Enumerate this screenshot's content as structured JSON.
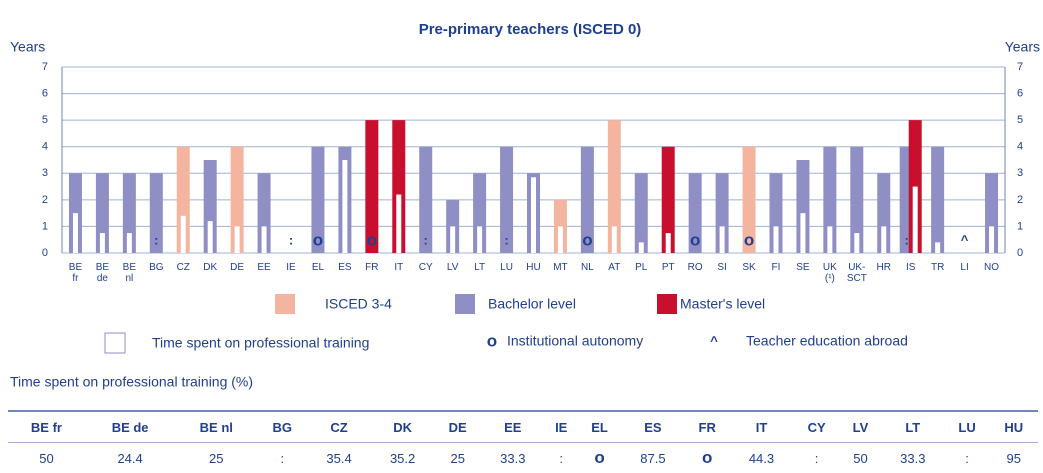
{
  "chart_data": {
    "type": "bar",
    "title": "Pre-primary teachers (ISCED 0)",
    "ylabel": "Years",
    "y2label": "Years",
    "categories": [
      "BE fr",
      "BE de",
      "BE nl",
      "BG",
      "CZ",
      "DK",
      "DE",
      "EE",
      "IE",
      "EL",
      "ES",
      "FR",
      "IT",
      "CY",
      "LV",
      "LT",
      "LU",
      "HU",
      "MT",
      "NL",
      "AT",
      "PL",
      "PT",
      "RO",
      "SI",
      "SK",
      "FI",
      "SE",
      "UK (¹)",
      "UK-SCT",
      "HR",
      "IS",
      "TR",
      "LI",
      "NO"
    ],
    "series": [
      {
        "name": "ISCED 3-4",
        "color": "#f4b5a0",
        "values": [
          null,
          null,
          null,
          null,
          4,
          null,
          4,
          null,
          null,
          null,
          null,
          null,
          null,
          null,
          null,
          null,
          null,
          null,
          2,
          null,
          5,
          null,
          null,
          null,
          null,
          4,
          null,
          null,
          null,
          null,
          null,
          null,
          null,
          null,
          null
        ]
      },
      {
        "name": "Bachelor level",
        "color": "#8f8fc6",
        "values": [
          3,
          3,
          3,
          3,
          null,
          3.5,
          null,
          3,
          null,
          4,
          4,
          null,
          null,
          4,
          2,
          3,
          4,
          3,
          null,
          4,
          null,
          3,
          null,
          3,
          3,
          null,
          3,
          3.5,
          4,
          4,
          3,
          4,
          4,
          null,
          3
        ]
      },
      {
        "name": "Master's level",
        "color": "#c8102e",
        "values": [
          null,
          null,
          null,
          null,
          null,
          null,
          null,
          null,
          null,
          null,
          null,
          5,
          5,
          null,
          null,
          null,
          null,
          null,
          null,
          null,
          null,
          null,
          4,
          null,
          null,
          null,
          null,
          null,
          null,
          null,
          null,
          5,
          null,
          null,
          null
        ]
      }
    ],
    "training": {
      "name": "Time spent on professional training",
      "values": [
        1.5,
        0.75,
        0.75,
        null,
        1.4,
        1.2,
        1,
        1,
        null,
        null,
        3.5,
        null,
        2.2,
        null,
        1,
        1,
        null,
        2.85,
        1,
        null,
        1,
        0.4,
        0.75,
        null,
        1,
        null,
        1,
        1.5,
        1,
        0.75,
        1,
        2.5,
        0.4,
        null,
        1
      ]
    },
    "markers": [
      null,
      null,
      null,
      ":",
      null,
      null,
      null,
      null,
      ":",
      "o",
      null,
      "o",
      null,
      ":",
      null,
      null,
      ":",
      null,
      null,
      "o",
      null,
      null,
      null,
      "o",
      null,
      "o",
      null,
      null,
      null,
      null,
      null,
      ":",
      null,
      "^",
      null
    ],
    "marker_legend": [
      {
        "symbol": "o",
        "name": "Institutional autonomy"
      },
      {
        "symbol": "^",
        "name": "Teacher education abroad"
      }
    ],
    "ylim": [
      0,
      7
    ],
    "yticks": [
      0,
      1,
      2,
      3,
      4,
      5,
      6,
      7
    ],
    "grid": true
  },
  "table": {
    "title": "Time spent on professional training (%)",
    "header": [
      "BE fr",
      "BE de",
      "BE nl",
      "BG",
      "CZ",
      "DK",
      "DE",
      "EE",
      "IE",
      "EL",
      "ES",
      "FR",
      "IT",
      "CY",
      "LV",
      "LT",
      "LU",
      "HU"
    ],
    "rows": [
      [
        "50",
        "24.4",
        "25",
        ":",
        "35.4",
        "35.2",
        "25",
        "33.3",
        ":",
        "o",
        "87.5",
        "o",
        "44.3",
        ":",
        "50",
        "33.3",
        ":",
        "95"
      ]
    ]
  }
}
